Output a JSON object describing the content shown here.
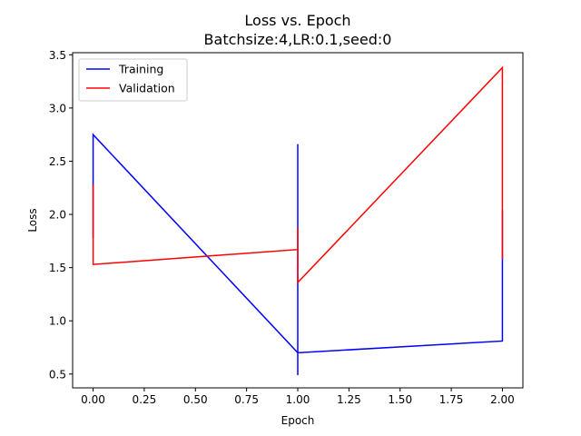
{
  "chart_data": {
    "type": "line",
    "title": "Loss vs. Epoch",
    "subtitle": "Batchsize:4,LR:0.1,seed:0",
    "xlabel": "Epoch",
    "ylabel": "Loss",
    "xlim": [
      -0.1,
      2.1
    ],
    "ylim": [
      0.37,
      3.52
    ],
    "xticks": [
      0.0,
      0.25,
      0.5,
      0.75,
      1.0,
      1.25,
      1.5,
      1.75,
      2.0
    ],
    "xtick_labels": [
      "0.00",
      "0.25",
      "0.50",
      "0.75",
      "1.00",
      "1.25",
      "1.50",
      "1.75",
      "2.00"
    ],
    "yticks": [
      0.5,
      1.0,
      1.5,
      2.0,
      2.5,
      3.0,
      3.5
    ],
    "ytick_labels": [
      "0.5",
      "1.0",
      "1.5",
      "2.0",
      "2.5",
      "3.0",
      "3.5"
    ],
    "grid": false,
    "legend_placement": "top-left",
    "series": [
      {
        "name": "Training",
        "color": "#0000ff",
        "x": [
          0.0,
          0.0,
          0.0,
          0.0,
          0.0,
          1.0,
          1.0,
          1.0,
          1.0,
          1.0,
          2.0,
          2.0,
          2.0
        ],
        "y": [
          2.44,
          1.78,
          2.3,
          1.9,
          2.75,
          0.7,
          2.66,
          0.49,
          1.4,
          0.7,
          0.81,
          2.04,
          1.6
        ]
      },
      {
        "name": "Validation",
        "color": "#ff0000",
        "x": [
          0.0,
          0.0,
          0.0,
          0.0,
          1.0,
          1.0,
          1.0,
          1.0,
          2.0,
          2.0,
          2.0,
          2.0
        ],
        "y": [
          2.28,
          1.53,
          1.9,
          1.53,
          1.67,
          1.88,
          1.36,
          1.36,
          3.38,
          1.58,
          1.95,
          1.58
        ]
      }
    ]
  }
}
